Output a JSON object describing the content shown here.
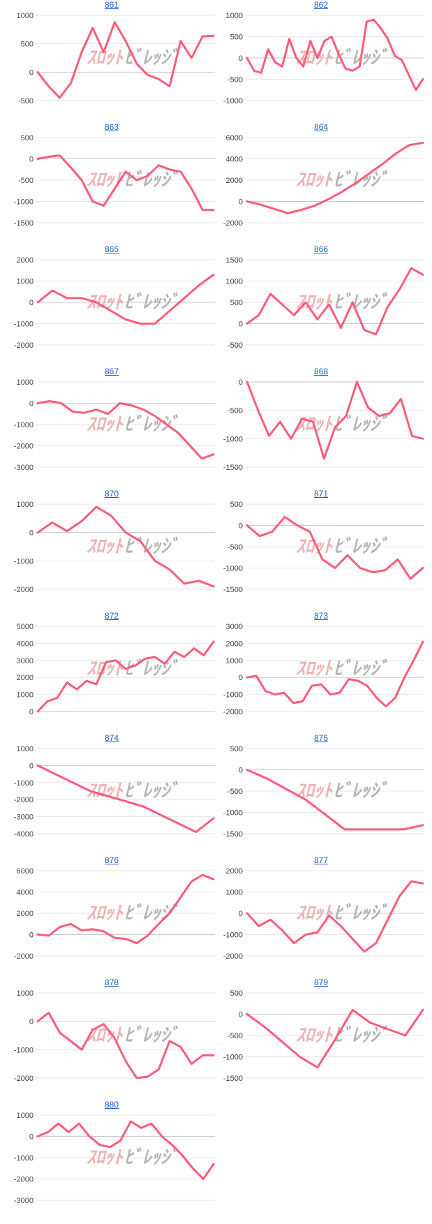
{
  "watermark": {
    "left": "ｽﾛｯﾄ",
    "right": "ﾋﾞﾚｯｼﾞ"
  },
  "colors": {
    "line": "#ff5c7a",
    "grid": "#e6e6e6",
    "zero": "#c8c8c8",
    "link": "#1a5fd0",
    "tick": "#444444"
  },
  "chart_data": [
    {
      "type": "line",
      "title": "861",
      "ylim": [
        -500,
        1000
      ],
      "yticks": [
        1000,
        500,
        0,
        -500
      ],
      "values": [
        0,
        -250,
        -450,
        -200,
        350,
        780,
        350,
        880,
        550,
        150,
        -50,
        -120,
        -250,
        550,
        250,
        630,
        640
      ]
    },
    {
      "type": "line",
      "title": "862",
      "ylim": [
        -1000,
        1000
      ],
      "yticks": [
        1000,
        500,
        0,
        -500,
        -1000
      ],
      "values": [
        0,
        -300,
        -350,
        200,
        -100,
        -200,
        450,
        0,
        -200,
        400,
        0,
        400,
        500,
        100,
        -250,
        -300,
        -200,
        850,
        900,
        700,
        450,
        50,
        -50,
        -400,
        -750,
        -500
      ]
    },
    {
      "type": "line",
      "title": "863",
      "ylim": [
        -1500,
        500
      ],
      "yticks": [
        500,
        0,
        -500,
        -1000,
        -1500
      ],
      "values": [
        0,
        50,
        80,
        -200,
        -500,
        -1000,
        -1100,
        -700,
        -300,
        -500,
        -400,
        -150,
        -250,
        -300,
        -700,
        -1200,
        -1200
      ]
    },
    {
      "type": "line",
      "title": "864",
      "ylim": [
        -2000,
        6000
      ],
      "yticks": [
        6000,
        4000,
        2000,
        0,
        -2000
      ],
      "values": [
        0,
        -300,
        -700,
        -1100,
        -800,
        -400,
        200,
        900,
        1700,
        2600,
        3500,
        4500,
        5300,
        5500
      ]
    },
    {
      "type": "line",
      "title": "865",
      "ylim": [
        -2000,
        2000
      ],
      "yticks": [
        2000,
        1000,
        0,
        -1000,
        -2000
      ],
      "values": [
        0,
        550,
        200,
        200,
        0,
        -400,
        -800,
        -1000,
        -1000,
        -400,
        200,
        800,
        1300
      ]
    },
    {
      "type": "line",
      "title": "866",
      "ylim": [
        -500,
        1500
      ],
      "yticks": [
        1500,
        1000,
        500,
        0,
        -500
      ],
      "values": [
        0,
        200,
        700,
        450,
        200,
        500,
        100,
        450,
        -100,
        500,
        -150,
        -250,
        400,
        800,
        1300,
        1150
      ]
    },
    {
      "type": "line",
      "title": "867",
      "ylim": [
        -3000,
        1000
      ],
      "yticks": [
        1000,
        0,
        -1000,
        -2000,
        -3000
      ],
      "values": [
        0,
        100,
        0,
        -400,
        -450,
        -300,
        -500,
        0,
        -100,
        -300,
        -600,
        -1000,
        -1400,
        -2000,
        -2600,
        -2400
      ]
    },
    {
      "type": "line",
      "title": "868",
      "ylim": [
        -1500,
        0
      ],
      "yticks": [
        0,
        -500,
        -1000,
        -1500
      ],
      "values": [
        0,
        -500,
        -950,
        -700,
        -1000,
        -650,
        -700,
        -1350,
        -800,
        -600,
        0,
        -450,
        -600,
        -550,
        -300,
        -950,
        -1000
      ]
    },
    {
      "type": "line",
      "title": "870",
      "ylim": [
        -2000,
        1000
      ],
      "yticks": [
        1000,
        0,
        -1000,
        -2000
      ],
      "values": [
        0,
        350,
        50,
        400,
        900,
        600,
        0,
        -300,
        -1000,
        -1300,
        -1800,
        -1700,
        -1900
      ]
    },
    {
      "type": "line",
      "title": "871",
      "ylim": [
        -1500,
        500
      ],
      "yticks": [
        500,
        0,
        -500,
        -1000,
        -1500
      ],
      "values": [
        0,
        -250,
        -150,
        200,
        0,
        -150,
        -800,
        -1000,
        -700,
        -1000,
        -1100,
        -1050,
        -800,
        -1250,
        -1000
      ]
    },
    {
      "type": "line",
      "title": "872",
      "ylim": [
        0,
        5000
      ],
      "yticks": [
        5000,
        4000,
        3000,
        2000,
        1000,
        0
      ],
      "values": [
        0,
        600,
        800,
        1700,
        1300,
        1800,
        1600,
        2900,
        3000,
        2500,
        2700,
        3100,
        3200,
        2800,
        3500,
        3200,
        3700,
        3300,
        4100
      ]
    },
    {
      "type": "line",
      "title": "873",
      "ylim": [
        -2000,
        3000
      ],
      "yticks": [
        3000,
        2000,
        1000,
        0,
        -1000,
        -2000
      ],
      "values": [
        0,
        100,
        -800,
        -1000,
        -900,
        -1500,
        -1400,
        -500,
        -400,
        -1000,
        -900,
        -100,
        -200,
        -500,
        -1200,
        -1700,
        -1200,
        0,
        1000,
        2100
      ]
    },
    {
      "type": "line",
      "title": "874",
      "ylim": [
        -4000,
        1000
      ],
      "yticks": [
        1000,
        0,
        -1000,
        -2000,
        -3000,
        -4000
      ],
      "values": [
        0,
        -500,
        -1000,
        -1500,
        -1800,
        -2100,
        -2400,
        -2900,
        -3400,
        -3900,
        -3100
      ]
    },
    {
      "type": "line",
      "title": "875",
      "ylim": [
        -1500,
        500
      ],
      "yticks": [
        500,
        0,
        -500,
        -1000,
        -1500
      ],
      "values": [
        0,
        -200,
        -450,
        -700,
        -1050,
        -1400,
        -1400,
        -1400,
        -1400,
        -1300
      ]
    },
    {
      "type": "line",
      "title": "876",
      "ylim": [
        -2000,
        6000
      ],
      "yticks": [
        6000,
        4000,
        2000,
        0,
        -2000
      ],
      "values": [
        0,
        -100,
        700,
        1000,
        400,
        500,
        300,
        -300,
        -400,
        -800,
        -100,
        1000,
        2000,
        3500,
        5000,
        5600,
        5200
      ]
    },
    {
      "type": "line",
      "title": "877",
      "ylim": [
        -2000,
        2000
      ],
      "yticks": [
        2000,
        1000,
        0,
        -1000,
        -2000
      ],
      "values": [
        0,
        -600,
        -300,
        -800,
        -1400,
        -1000,
        -900,
        -100,
        -600,
        -1200,
        -1800,
        -1400,
        -300,
        800,
        1500,
        1400
      ]
    },
    {
      "type": "line",
      "title": "878",
      "ylim": [
        -2000,
        1000
      ],
      "yticks": [
        1000,
        0,
        -1000,
        -2000
      ],
      "values": [
        0,
        300,
        -400,
        -700,
        -1000,
        -300,
        -100,
        -600,
        -1400,
        -2000,
        -1950,
        -1700,
        -700,
        -900,
        -1500,
        -1200,
        -1200
      ]
    },
    {
      "type": "line",
      "title": "879",
      "ylim": [
        -1500,
        500
      ],
      "yticks": [
        500,
        0,
        -500,
        -1000,
        -1500
      ],
      "values": [
        0,
        -300,
        -650,
        -1000,
        -1250,
        -600,
        100,
        -200,
        -350,
        -500,
        100
      ]
    },
    {
      "type": "line",
      "title": "880",
      "ylim": [
        -3000,
        1000
      ],
      "yticks": [
        1000,
        0,
        -1000,
        -2000,
        -3000
      ],
      "values": [
        0,
        200,
        600,
        200,
        600,
        0,
        -400,
        -500,
        -200,
        700,
        400,
        600,
        0,
        -400,
        -900,
        -1500,
        -2000,
        -1300
      ]
    }
  ]
}
